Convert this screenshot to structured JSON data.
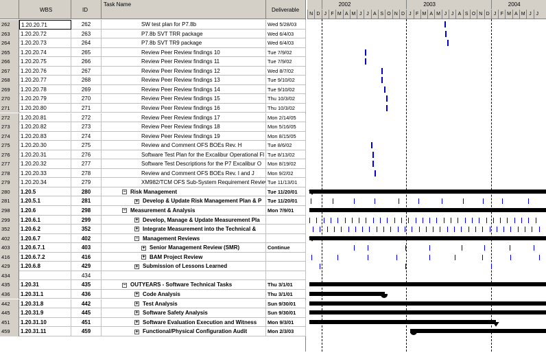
{
  "columns": {
    "wbs": "WBS",
    "id": "ID",
    "task_name": "Task Name",
    "deliverable": "Deliverable"
  },
  "timeline": {
    "years": [
      "2002",
      "2003",
      "2004"
    ],
    "months": [
      "N",
      "D",
      "J",
      "F",
      "M",
      "A",
      "M",
      "J",
      "J",
      "A",
      "S",
      "O",
      "N",
      "D",
      "J",
      "F",
      "M",
      "A",
      "M",
      "J",
      "J",
      "A",
      "S",
      "O",
      "N",
      "D",
      "J",
      "F",
      "M",
      "A",
      "M",
      "J",
      "J"
    ]
  },
  "rows": [
    {
      "rn": "262",
      "wbs": "1.20.20.71",
      "id": "262",
      "name": "SW test plan for P7.8b",
      "del": "Wed 5/28/03",
      "level": 3,
      "bold": false
    },
    {
      "rn": "263",
      "wbs": "1.20.20.72",
      "id": "263",
      "name": "P7.8b SVT TRR package",
      "del": "Wed 6/4/03",
      "level": 3,
      "bold": false
    },
    {
      "rn": "264",
      "wbs": "1.20.20.73",
      "id": "264",
      "name": "P7.8b SVT TR9 package",
      "del": "Wed 6/4/03",
      "level": 3,
      "bold": false
    },
    {
      "rn": "265",
      "wbs": "1.20.20.74",
      "id": "265",
      "name": "Review Peer Review findings 10",
      "del": "Tue 7/9/02",
      "level": 3,
      "bold": false
    },
    {
      "rn": "266",
      "wbs": "1.20.20.75",
      "id": "266",
      "name": "Review Peer Review findings 11",
      "del": "Tue 7/9/02",
      "level": 3,
      "bold": false
    },
    {
      "rn": "267",
      "wbs": "1.20.20.76",
      "id": "267",
      "name": "Review Peer Review findings 12",
      "del": "Wed 8/7/02",
      "level": 3,
      "bold": false
    },
    {
      "rn": "268",
      "wbs": "1.20.20.77",
      "id": "268",
      "name": "Review Peer Review findings 13",
      "del": "Tue 9/10/02",
      "level": 3,
      "bold": false
    },
    {
      "rn": "269",
      "wbs": "1.20.20.78",
      "id": "269",
      "name": "Review Peer Review findings 14",
      "del": "Tue 9/10/02",
      "level": 3,
      "bold": false
    },
    {
      "rn": "270",
      "wbs": "1.20.20.79",
      "id": "270",
      "name": "Review Peer Review findings 15",
      "del": "Thu 10/3/02",
      "level": 3,
      "bold": false
    },
    {
      "rn": "271",
      "wbs": "1.20.20.80",
      "id": "271",
      "name": "Review Peer Review findings 16",
      "del": "Thu 10/3/02",
      "level": 3,
      "bold": false
    },
    {
      "rn": "272",
      "wbs": "1.20.20.81",
      "id": "272",
      "name": "Review Peer Review findings 17",
      "del": "Mon 2/14/05",
      "level": 3,
      "bold": false
    },
    {
      "rn": "273",
      "wbs": "1.20.20.82",
      "id": "273",
      "name": "Review Peer Review findings 18",
      "del": "Mon 5/16/05",
      "level": 3,
      "bold": false
    },
    {
      "rn": "274",
      "wbs": "1.20.20.83",
      "id": "274",
      "name": "Review Peer Review findings 19",
      "del": "Mon 8/15/05",
      "level": 3,
      "bold": false
    },
    {
      "rn": "275",
      "wbs": "1.20.20.30",
      "id": "275",
      "name": "Review and Comment OFS BOEs Rev. H",
      "del": "Tue 8/6/02",
      "level": 3,
      "bold": false
    },
    {
      "rn": "276",
      "wbs": "1.20.20.31",
      "id": "276",
      "name": "Software Test Plan for the Excalibur Operational Fl",
      "del": "Tue 8/13/02",
      "level": 3,
      "bold": false
    },
    {
      "rn": "277",
      "wbs": "1.20.20.32",
      "id": "277",
      "name": "Software Test Descriptions for the P7 Excalibur O",
      "del": "Mon 8/19/02",
      "level": 3,
      "bold": false
    },
    {
      "rn": "278",
      "wbs": "1.20.20.33",
      "id": "278",
      "name": "Review and Comment OFS BOEs Rev. I and J",
      "del": "Mon 9/2/02",
      "level": 3,
      "bold": false
    },
    {
      "rn": "279",
      "wbs": "1.20.20.34",
      "id": "279",
      "name": "XM982/TCM OFS Sub-System Requirement Review",
      "del": "Tue 11/13/01",
      "level": 3,
      "bold": false
    },
    {
      "rn": "280",
      "wbs": "1.20.5",
      "id": "280",
      "name": "Risk Management",
      "del": "Tue 11/20/01",
      "level": 1,
      "bold": true,
      "toggle": "−"
    },
    {
      "rn": "281",
      "wbs": "1.20.5.1",
      "id": "281",
      "name": "Develop & Update Risk Management Plan & P",
      "del": "Tue 11/20/01",
      "level": 2,
      "bold": true,
      "toggle": "+"
    },
    {
      "rn": "298",
      "wbs": "1.20.6",
      "id": "298",
      "name": "Measurement & Analysis",
      "del": "Mon 7/9/01",
      "level": 1,
      "bold": true,
      "toggle": "−"
    },
    {
      "rn": "299",
      "wbs": "1.20.6.1",
      "id": "299",
      "name": "Develop, Manage & Update Measurement Pla",
      "del": "",
      "level": 2,
      "bold": true,
      "toggle": "+"
    },
    {
      "rn": "352",
      "wbs": "1.20.6.2",
      "id": "352",
      "name": "Integrate Measurement into the Technical &",
      "del": "",
      "level": 2,
      "bold": true,
      "toggle": "+"
    },
    {
      "rn": "402",
      "wbs": "1.20.6.7",
      "id": "402",
      "name": "Management Reviews",
      "del": "",
      "level": 2,
      "bold": true,
      "toggle": "−"
    },
    {
      "rn": "403",
      "wbs": "1.20.6.7.1",
      "id": "403",
      "name": "Senior Management Review (SMR)",
      "del": "Continue",
      "level": 3,
      "bold": true,
      "toggle": "+"
    },
    {
      "rn": "416",
      "wbs": "1.20.6.7.2",
      "id": "416",
      "name": "BAM Project Review",
      "del": "",
      "level": 3,
      "bold": true,
      "toggle": "+"
    },
    {
      "rn": "429",
      "wbs": "1.20.6.8",
      "id": "429",
      "name": "Submission of Lessons Learned",
      "del": "",
      "level": 2,
      "bold": true,
      "toggle": "+"
    },
    {
      "rn": "434",
      "wbs": "",
      "id": "434",
      "name": "",
      "del": "",
      "level": 1,
      "bold": false
    },
    {
      "rn": "435",
      "wbs": "1.20.31",
      "id": "435",
      "name": "OUTYEARS - Software Technical Tasks",
      "del": "Thu 3/1/01",
      "level": 1,
      "bold": true,
      "toggle": "−"
    },
    {
      "rn": "436",
      "wbs": "1.20.31.1",
      "id": "436",
      "name": "Code Analysis",
      "del": "Thu 3/1/01",
      "level": 2,
      "bold": true,
      "toggle": "+"
    },
    {
      "rn": "442",
      "wbs": "1.20.31.8",
      "id": "442",
      "name": "Test Analysis",
      "del": "Sun 9/30/01",
      "level": 2,
      "bold": true,
      "toggle": "+"
    },
    {
      "rn": "445",
      "wbs": "1.20.31.9",
      "id": "445",
      "name": "Software Safety Analysis",
      "del": "Sun 9/30/01",
      "level": 2,
      "bold": true,
      "toggle": "+"
    },
    {
      "rn": "451",
      "wbs": "1.20.31.10",
      "id": "451",
      "name": "Software Evaluation Execution and Witness",
      "del": "Mon 9/3/01",
      "level": 2,
      "bold": true,
      "toggle": "+"
    },
    {
      "rn": "459",
      "wbs": "1.20.31.11",
      "id": "459",
      "name": "Functional/Physical Configuration Audit",
      "del": "Mon 2/3/03",
      "level": 2,
      "bold": true,
      "toggle": "+"
    }
  ]
}
